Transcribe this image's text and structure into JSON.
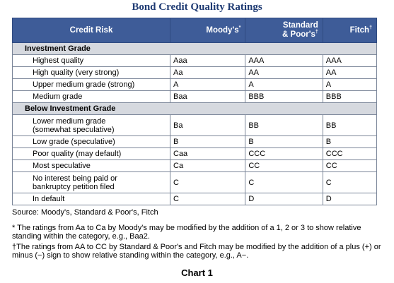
{
  "title": "Bond Credit Quality Ratings",
  "table": {
    "headers": {
      "risk": "Credit Risk",
      "moodys": "Moody's",
      "moodys_mark": "*",
      "sp_line1": "Standard",
      "sp_line2": "& Poor's",
      "sp_mark": "†",
      "fitch": "Fitch",
      "fitch_mark": "†"
    },
    "sections": [
      {
        "label": "Investment Grade",
        "rows": [
          {
            "desc_lines": [
              "Highest quality"
            ],
            "moodys": "Aaa",
            "sp": "AAA",
            "fitch": "AAA"
          },
          {
            "desc_lines": [
              "High quality (very strong)"
            ],
            "moodys": "Aa",
            "sp": "AA",
            "fitch": "AA"
          },
          {
            "desc_lines": [
              "Upper medium grade (strong)"
            ],
            "moodys": "A",
            "sp": "A",
            "fitch": "A"
          },
          {
            "desc_lines": [
              "Medium grade"
            ],
            "moodys": "Baa",
            "sp": "BBB",
            "fitch": "BBB"
          }
        ]
      },
      {
        "label": "Below Investment Grade",
        "rows": [
          {
            "desc_lines": [
              "Lower medium grade",
              "(somewhat speculative)"
            ],
            "moodys": "Ba",
            "sp": "BB",
            "fitch": "BB"
          },
          {
            "desc_lines": [
              "Low grade (speculative)"
            ],
            "moodys": "B",
            "sp": "B",
            "fitch": "B"
          },
          {
            "desc_lines": [
              "Poor quality (may default)"
            ],
            "moodys": "Caa",
            "sp": "CCC",
            "fitch": "CCC"
          },
          {
            "desc_lines": [
              "Most speculative"
            ],
            "moodys": "Ca",
            "sp": "CC",
            "fitch": "CC"
          },
          {
            "desc_lines": [
              "No interest being paid or",
              "bankruptcy petition filed"
            ],
            "moodys": "C",
            "sp": "C",
            "fitch": "C"
          },
          {
            "desc_lines": [
              "In default"
            ],
            "moodys": "C",
            "sp": "D",
            "fitch": "D"
          }
        ]
      }
    ]
  },
  "source": "Source: Moody's, Standard & Poor's, Fitch",
  "notes": {
    "note1": "* The ratings from Aa to Ca by Moody's may be modified by the addition of a 1, 2 or 3 to show relative standing within the category, e.g., Baa2.",
    "note2": "†The ratings from AA to CC by Standard & Poor's and Fitch may be modified by the addition of a plus (+) or minus (−) sign to show relative standing within the category, e.g., A−."
  },
  "chart_label": "Chart 1",
  "colors": {
    "header_bg": "#3e5c98",
    "title": "#1f3b73",
    "section_bg": "#d6d9df"
  }
}
